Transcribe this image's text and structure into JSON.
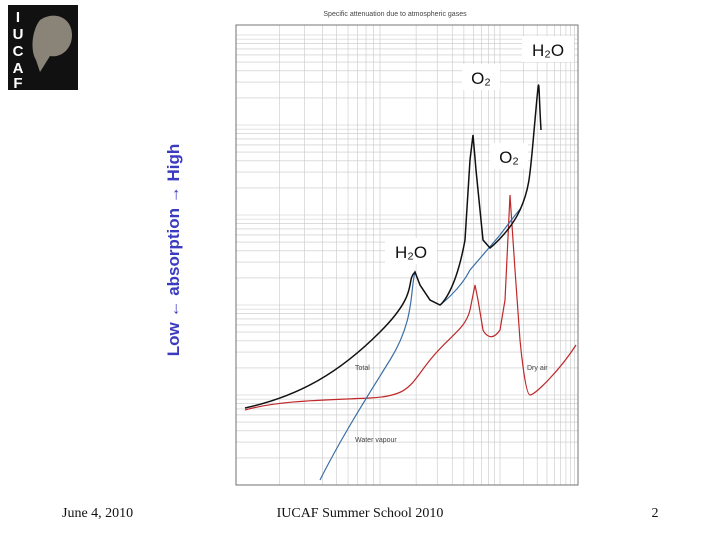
{
  "logo": {
    "letters": [
      "I",
      "U",
      "C",
      "A",
      "F"
    ]
  },
  "axis_label": "Low ← absorption → High",
  "figure": {
    "title": "Specific attenuation due to atmospheric gases",
    "curve_labels": [
      "Total",
      "Dry air",
      "Water vapour"
    ]
  },
  "annotations": [
    "H₂O",
    "O₂",
    "O₂",
    "H₂O"
  ],
  "footer": {
    "date": "June 4, 2010",
    "event": "IUCAF Summer School 2010",
    "page": "2"
  }
}
